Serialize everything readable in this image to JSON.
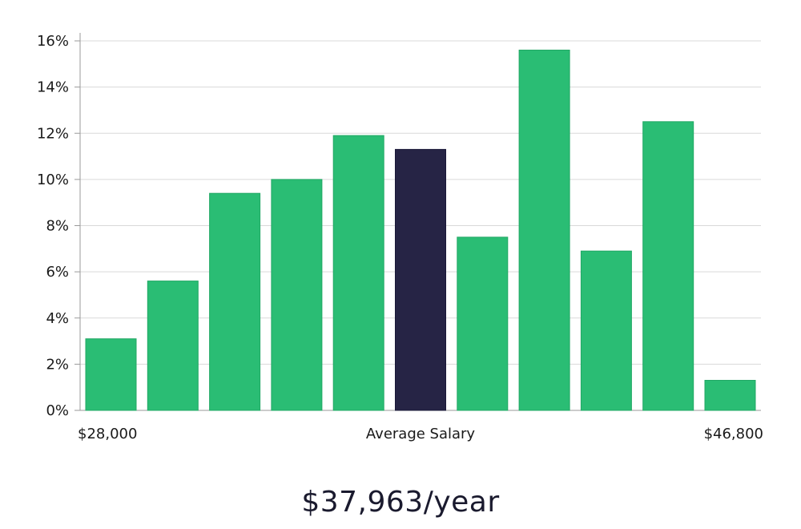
{
  "chart_data": {
    "type": "bar",
    "title": "",
    "xlabel": "Average Salary",
    "ylabel": "",
    "ylim": [
      0,
      16
    ],
    "yticks": [
      "0%",
      "2%",
      "4%",
      "6%",
      "8%",
      "10%",
      "12%",
      "14%",
      "16%"
    ],
    "ytick_values": [
      0,
      2,
      4,
      6,
      8,
      10,
      12,
      14,
      16
    ],
    "x_min_label": "$28,000",
    "x_max_label": "$46,800",
    "values": [
      3.1,
      5.6,
      9.4,
      10.0,
      11.9,
      11.3,
      7.5,
      15.6,
      6.9,
      12.5,
      1.3
    ],
    "highlight_index": 5,
    "grid": true,
    "colors": {
      "bar": "#2abd74",
      "highlight": "#262445",
      "grid": "#d9d9d9",
      "axis": "#9a9a9a"
    }
  },
  "summary": {
    "salary_text": "$37,963/year"
  }
}
